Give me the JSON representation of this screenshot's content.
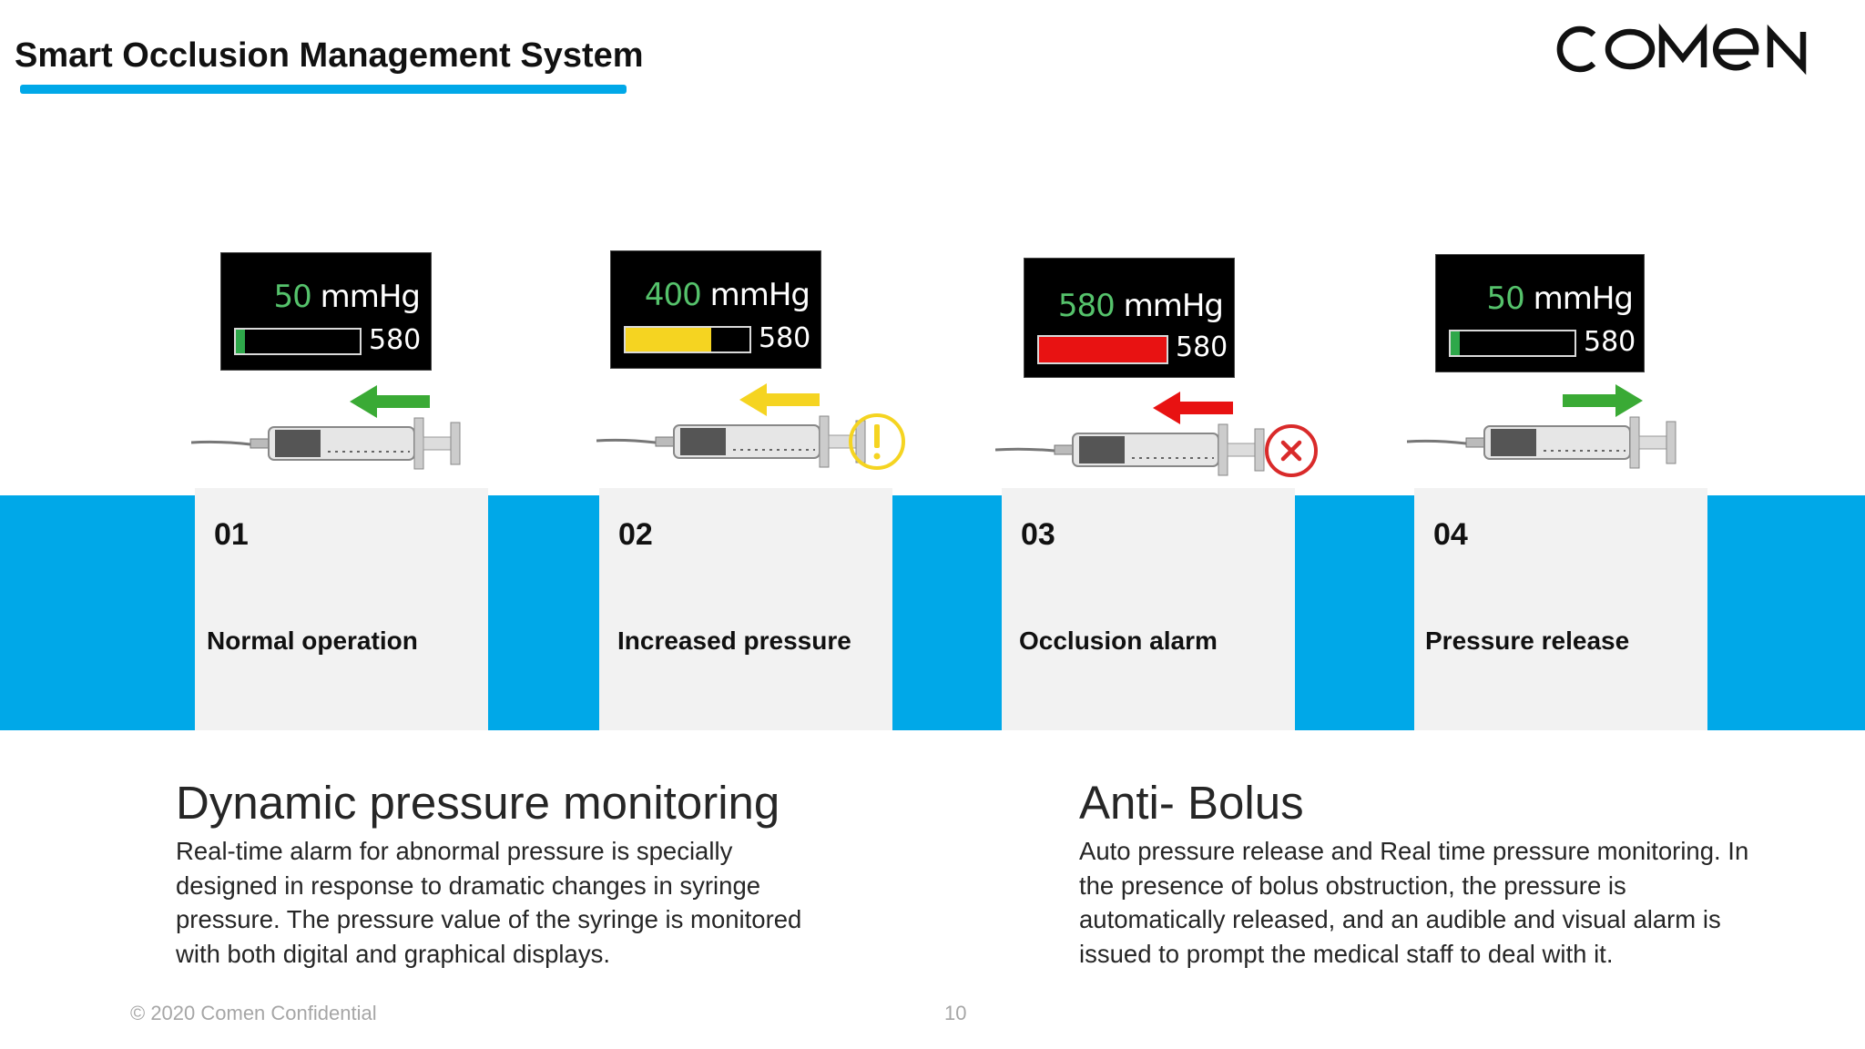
{
  "header": {
    "title": "Smart Occlusion Management System",
    "logo_text": "COMEN",
    "accent_color": "#00a8e8"
  },
  "steps": [
    {
      "number": "01",
      "label": "Normal operation",
      "pressure": "50",
      "unit": "mmHg",
      "max": "580",
      "fill_fraction": 0.07,
      "fill_color": "#2ea84a",
      "value_color": "#55c26b",
      "arrow_direction": "left",
      "arrow_color": "#3aaa35",
      "status_icon": "none"
    },
    {
      "number": "02",
      "label": "Increased pressure",
      "pressure": "400",
      "unit": "mmHg",
      "max": "580",
      "fill_fraction": 0.69,
      "fill_color": "#f5d421",
      "value_color": "#55c26b",
      "arrow_direction": "left",
      "arrow_color": "#f5d421",
      "status_icon": "warning-icon"
    },
    {
      "number": "03",
      "label": "Occlusion alarm",
      "pressure": "580",
      "unit": "mmHg",
      "max": "580",
      "fill_fraction": 1.0,
      "fill_color": "#e81212",
      "value_color": "#55c26b",
      "arrow_direction": "left",
      "arrow_color": "#e81212",
      "status_icon": "error-icon"
    },
    {
      "number": "04",
      "label": "Pressure release",
      "pressure": "50",
      "unit": "mmHg",
      "max": "580",
      "fill_fraction": 0.07,
      "fill_color": "#2ea84a",
      "value_color": "#55c26b",
      "arrow_direction": "right",
      "arrow_color": "#3aaa35",
      "status_icon": "none"
    }
  ],
  "sections": [
    {
      "title": "Dynamic pressure monitoring",
      "body": "Real-time alarm for abnormal pressure is specially designed in response to dramatic changes in syringe pressure. The pressure value of the syringe is monitored with both digital and graphical displays."
    },
    {
      "title": "Anti- Bolus",
      "body": "Auto pressure release and Real time pressure monitoring. In the presence of bolus obstruction, the pressure is automatically released, and an audible and visual alarm is issued to prompt the medical staff to deal with it."
    }
  ],
  "footer": {
    "copyright": "© 2020 Comen Confidential",
    "page_number": "10"
  }
}
